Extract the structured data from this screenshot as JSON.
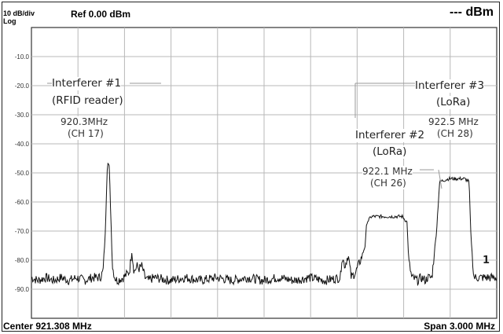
{
  "header": {
    "scale": "10 dB/div",
    "scale_type": "Log",
    "ref_level": "Ref 0.00 dBm",
    "marker_readout": "--- dBm"
  },
  "footer": {
    "center": "Center 921.308 MHz",
    "span": "Span 3.000 MHz"
  },
  "annotations": {
    "int1": {
      "title": "Interferer #1",
      "subtitle": "(RFID reader)",
      "freq": "920.3MHz",
      "channel": "(CH 17)"
    },
    "int2": {
      "title": "Interferer #2",
      "subtitle": "(LoRa)",
      "freq": "922.1 MHz",
      "channel": "(CH 26)"
    },
    "int3": {
      "title": "Interferer #3",
      "subtitle": "(LoRa)",
      "freq": "922.5 MHz",
      "channel": "(CH 28)"
    }
  },
  "marker_label": "1",
  "colors": {
    "trace": "#111111",
    "grid": "#b8b8b8",
    "frame": "#222222"
  },
  "chart_data": {
    "type": "line",
    "title": "",
    "xlabel": "",
    "ylabel": "",
    "x_unit": "MHz",
    "y_unit": "dBm",
    "xlim": [
      919.808,
      922.808
    ],
    "ylim": [
      -100,
      0
    ],
    "y_ticks": [
      -10,
      -20,
      -30,
      -40,
      -50,
      -60,
      -70,
      -80,
      -90
    ],
    "y_tick_labels": [
      "-10.0",
      "-20.0",
      "-30.0",
      "-40.0",
      "-50.0",
      "-60.0",
      "-70.0",
      "-80.0",
      "-90.0"
    ],
    "grid": true,
    "series": [
      {
        "x": [
          919.808,
          919.85,
          919.9,
          919.95,
          920.0,
          920.05,
          920.1,
          920.15,
          920.2,
          920.25,
          920.27,
          920.285,
          920.295,
          920.3,
          920.31,
          920.32,
          920.33,
          920.345,
          920.36,
          920.4,
          920.44,
          920.455,
          920.47,
          920.49,
          920.5,
          920.52,
          920.54,
          920.56,
          920.6,
          920.7,
          920.8,
          920.9,
          921.0,
          921.1,
          921.2,
          921.3,
          921.4,
          921.5,
          921.6,
          921.7,
          921.8,
          921.81,
          921.83,
          921.85,
          921.87,
          921.9,
          921.93,
          921.96,
          921.97,
          922.0,
          922.1,
          922.2,
          922.23,
          922.24,
          922.26,
          922.3,
          922.32,
          922.35,
          922.36,
          922.39,
          922.42,
          922.44,
          922.5,
          922.6,
          922.63,
          922.64,
          922.66,
          922.7,
          922.75,
          922.808
        ],
        "y": [
          -86,
          -87,
          -86,
          -87,
          -86,
          -87,
          -86,
          -87,
          -86,
          -86,
          -84,
          -70,
          -50,
          -46,
          -48,
          -65,
          -82,
          -86,
          -87,
          -86,
          -84,
          -77,
          -84,
          -82,
          -83,
          -82,
          -86,
          -87,
          -86,
          -87,
          -86,
          -87,
          -86,
          -87,
          -86,
          -87,
          -86,
          -87,
          -86,
          -87,
          -86,
          -79,
          -82,
          -78,
          -86,
          -84,
          -80,
          -75,
          -67,
          -65,
          -65,
          -65,
          -67,
          -80,
          -86,
          -87,
          -86,
          -87,
          -86,
          -86,
          -70,
          -53,
          -52,
          -52,
          -53,
          -70,
          -86,
          -86,
          -86,
          -86
        ]
      }
    ]
  }
}
